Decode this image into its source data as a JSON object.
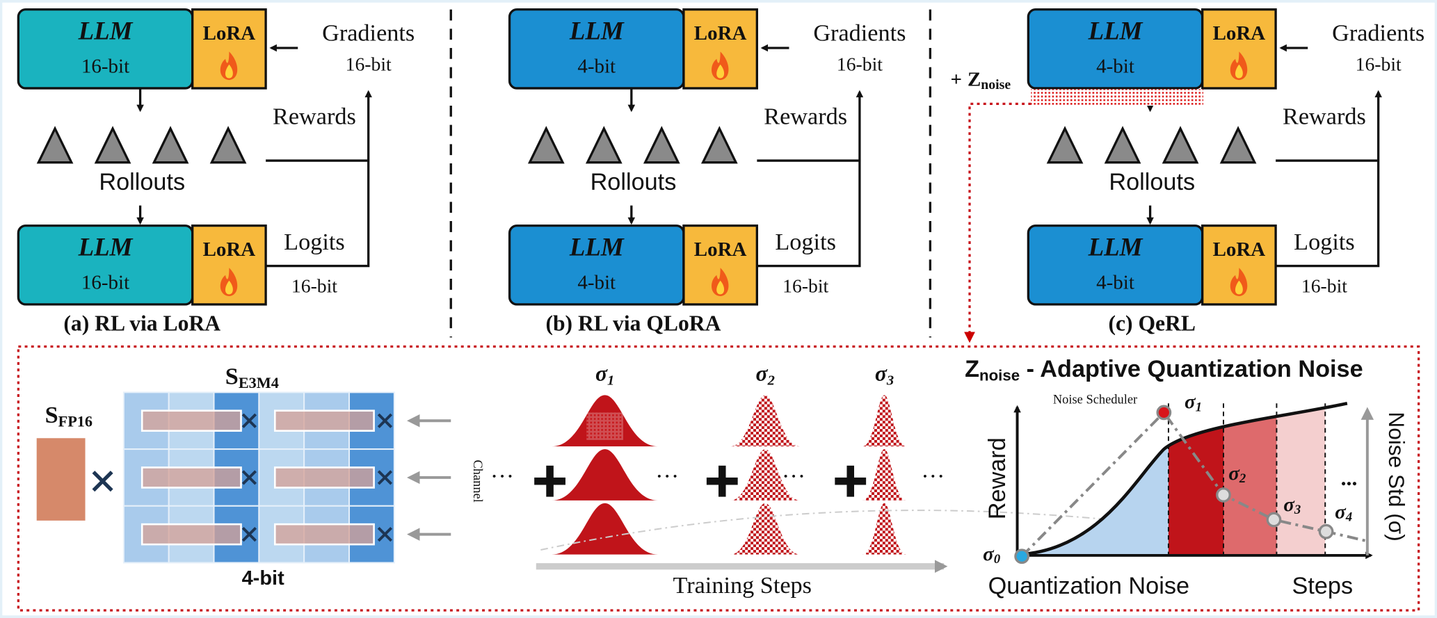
{
  "panels": [
    {
      "top": {
        "model": "LLM",
        "precision": "16-bit",
        "adapter": "LoRA"
      },
      "gradients": "Gradients",
      "gradients_precision": "16-bit",
      "rewards": "Rewards",
      "rollouts": "Rollouts",
      "bottom": {
        "model": "LLM",
        "precision": "16-bit",
        "adapter": "LoRA"
      },
      "logits": "Logits",
      "logits_precision": "16-bit",
      "caption": "(a) RL via LoRA"
    },
    {
      "top": {
        "model": "LLM",
        "precision": "4-bit",
        "adapter": "LoRA"
      },
      "gradients": "Gradients",
      "gradients_precision": "16-bit",
      "rewards": "Rewards",
      "rollouts": "Rollouts",
      "bottom": {
        "model": "LLM",
        "precision": "4-bit",
        "adapter": "LoRA"
      },
      "logits": "Logits",
      "logits_precision": "16-bit",
      "caption": "(b) RL via QLoRA"
    },
    {
      "top": {
        "model": "LLM",
        "precision": "4-bit",
        "adapter": "LoRA"
      },
      "gradients": "Gradients",
      "gradients_precision": "16-bit",
      "rewards": "Rewards",
      "rollouts": "Rollouts",
      "bottom": {
        "model": "LLM",
        "precision": "4-bit",
        "adapter": "LoRA"
      },
      "logits": "Logits",
      "logits_precision": "16-bit",
      "caption": "(c) QeRL"
    }
  ],
  "noise_input": {
    "sign": "+",
    "symbol": "Z",
    "sub": "noise"
  },
  "quant": {
    "fp16_scale": {
      "symbol": "S",
      "sub": "FP16"
    },
    "e3m4_scale": {
      "symbol": "S",
      "sub": "E3M4"
    },
    "weight_label": "4-bit",
    "channel_label": "Channel"
  },
  "noise_dist": {
    "sigmas": [
      {
        "symbol": "σ",
        "sub": "1"
      },
      {
        "symbol": "σ",
        "sub": "2"
      },
      {
        "symbol": "σ",
        "sub": "3"
      }
    ],
    "ellipsis": "···",
    "axis_label": "Training Steps"
  },
  "schedule": {
    "title": {
      "symbol": "Z",
      "sub": "noise",
      "text": " - Adaptive Quantization Noise"
    },
    "scheduler_label": "Noise Scheduler",
    "y_label": "Reward",
    "y2_label": "Noise Std (σ)",
    "x_label": "Steps",
    "region_label": "Quantization Noise",
    "points": [
      {
        "symbol": "σ",
        "sub": "0"
      },
      {
        "symbol": "σ",
        "sub": "1"
      },
      {
        "symbol": "σ",
        "sub": "2"
      },
      {
        "symbol": "σ",
        "sub": "3"
      },
      {
        "symbol": "σ",
        "sub": "4"
      }
    ],
    "ellipsis": "..."
  }
}
